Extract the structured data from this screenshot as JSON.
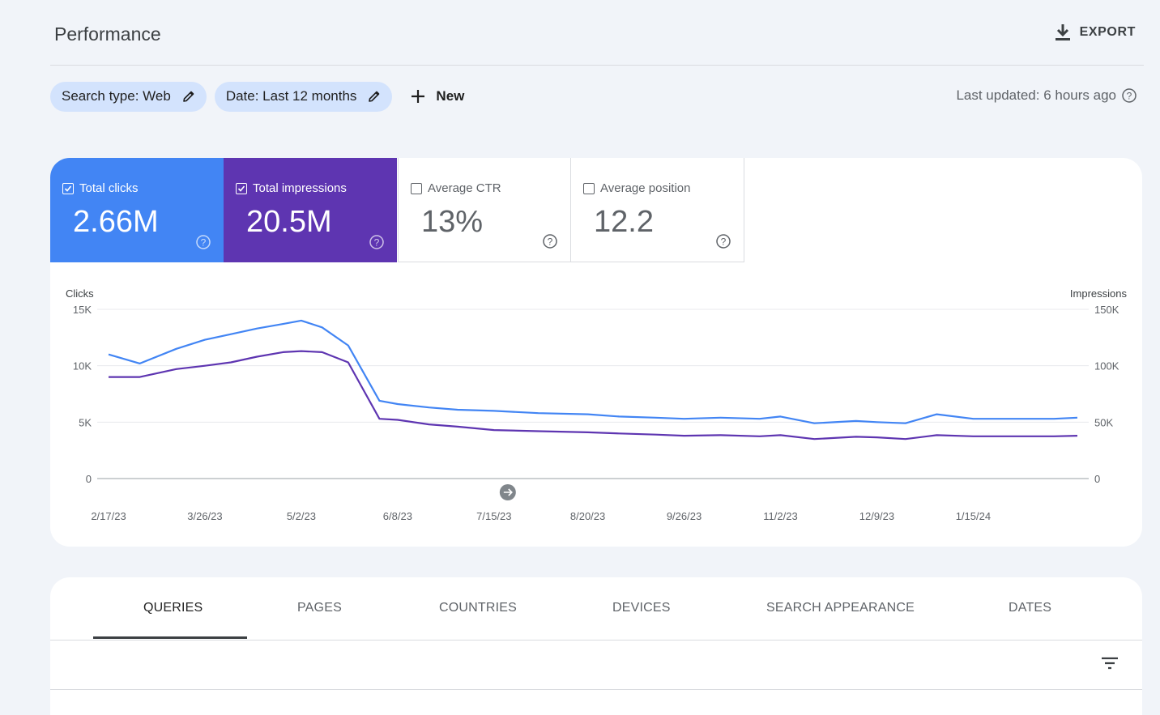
{
  "header": {
    "title": "Performance",
    "export_label": "EXPORT"
  },
  "filters": {
    "chips": [
      "Search type: Web",
      "Date: Last 12 months"
    ],
    "new_label": "New",
    "last_updated": "Last updated: 6 hours ago"
  },
  "metrics": [
    {
      "label": "Total clicks",
      "value": "2.66M",
      "checked": true,
      "color": "#4285f4"
    },
    {
      "label": "Total impressions",
      "value": "20.5M",
      "checked": true,
      "color": "#5e35b1"
    },
    {
      "label": "Average CTR",
      "value": "13%",
      "checked": false
    },
    {
      "label": "Average position",
      "value": "12.2",
      "checked": false
    }
  ],
  "chart_data": {
    "type": "line",
    "left_axis_label": "Clicks",
    "right_axis_label": "Impressions",
    "y_left_ticks": [
      "15K",
      "10K",
      "5K",
      "0"
    ],
    "y_right_ticks": [
      "150K",
      "100K",
      "50K",
      "0"
    ],
    "ylim_left": [
      0,
      15000
    ],
    "ylim_right": [
      0,
      150000
    ],
    "x_tick_labels": [
      "2/17/23",
      "3/26/23",
      "5/2/23",
      "6/8/23",
      "7/15/23",
      "8/20/23",
      "9/26/23",
      "11/2/23",
      "12/9/23",
      "1/15/24"
    ],
    "x_range": [
      "2/17/23",
      "2/24/24"
    ],
    "series": [
      {
        "name": "Total clicks",
        "axis": "left",
        "color": "#4285f4",
        "x": [
          "2/17/23",
          "3/1/23",
          "3/15/23",
          "3/26/23",
          "4/5/23",
          "4/15/23",
          "4/25/23",
          "5/2/23",
          "5/10/23",
          "5/20/23",
          "6/1/23",
          "6/8/23",
          "6/20/23",
          "7/1/23",
          "7/15/23",
          "8/1/23",
          "8/20/23",
          "9/1/23",
          "9/15/23",
          "9/26/23",
          "10/10/23",
          "10/25/23",
          "11/2/23",
          "11/15/23",
          "12/1/23",
          "12/9/23",
          "12/20/23",
          "1/1/24",
          "1/15/24",
          "2/1/24",
          "2/15/24",
          "2/24/24"
        ],
        "y": [
          11000,
          10200,
          11500,
          12300,
          12800,
          13300,
          13700,
          14000,
          13400,
          11800,
          6900,
          6600,
          6300,
          6100,
          6000,
          5800,
          5700,
          5500,
          5400,
          5300,
          5400,
          5300,
          5500,
          4900,
          5100,
          5000,
          4900,
          5700,
          5300,
          5300,
          5300,
          5400
        ]
      },
      {
        "name": "Total impressions",
        "axis": "right",
        "color": "#5e35b1",
        "x": [
          "2/17/23",
          "3/1/23",
          "3/15/23",
          "3/26/23",
          "4/5/23",
          "4/15/23",
          "4/25/23",
          "5/2/23",
          "5/10/23",
          "5/20/23",
          "6/1/23",
          "6/8/23",
          "6/20/23",
          "7/1/23",
          "7/15/23",
          "8/1/23",
          "8/20/23",
          "9/1/23",
          "9/15/23",
          "9/26/23",
          "10/10/23",
          "10/25/23",
          "11/2/23",
          "11/15/23",
          "12/1/23",
          "12/9/23",
          "12/20/23",
          "1/1/24",
          "1/15/24",
          "2/1/24",
          "2/15/24",
          "2/24/24"
        ],
        "y": [
          90000,
          90000,
          97000,
          100000,
          103000,
          108000,
          112000,
          113000,
          112000,
          103000,
          53000,
          52000,
          48000,
          46000,
          43000,
          42000,
          41000,
          40000,
          39000,
          38000,
          38500,
          37500,
          38500,
          35000,
          37000,
          36500,
          35000,
          38500,
          37500,
          37500,
          37500,
          38000
        ]
      }
    ]
  },
  "tabs": {
    "items": [
      "QUERIES",
      "PAGES",
      "COUNTRIES",
      "DEVICES",
      "SEARCH APPEARANCE",
      "DATES"
    ],
    "active": "QUERIES"
  }
}
